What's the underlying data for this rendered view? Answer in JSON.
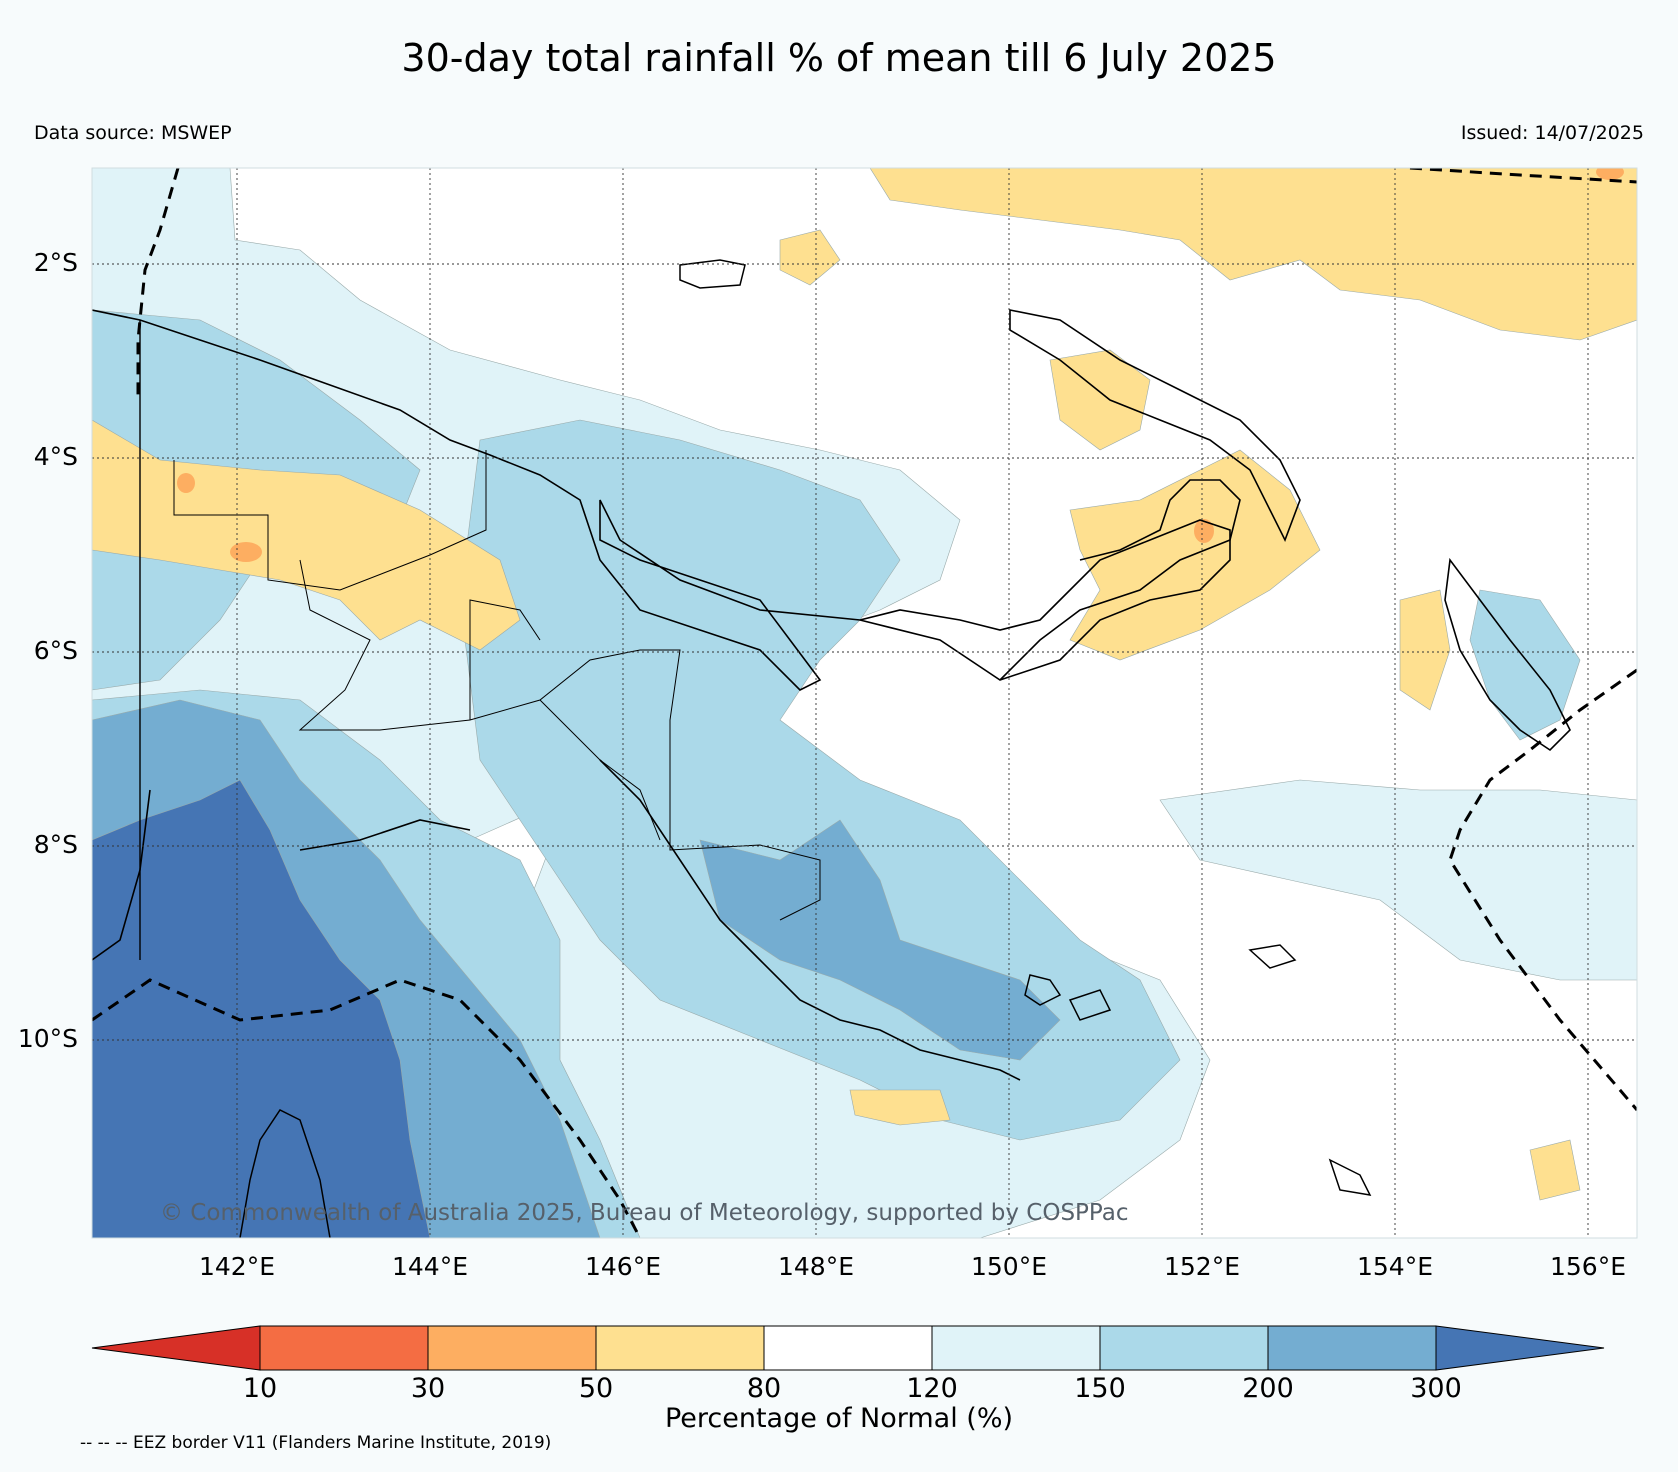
{
  "title": "30-day total rainfall % of mean till 6 July 2025",
  "data_source": "Data source: MSWEP",
  "issued": "Issued: 14/07/2025",
  "lat_labels": [
    "2°S",
    "4°S",
    "6°S",
    "8°S",
    "10°S"
  ],
  "lon_labels": [
    "142°E",
    "144°E",
    "146°E",
    "148°E",
    "150°E",
    "152°E",
    "154°E",
    "156°E"
  ],
  "watermark": "© Commonwealth of Australia 2025, Bureau of Meteorology, supported by COSPPac",
  "colorbar": {
    "ticks": [
      "10",
      "30",
      "50",
      "80",
      "120",
      "150",
      "200",
      "300"
    ],
    "label": "Percentage of Normal (%)",
    "colors": [
      "#d73027",
      "#f46d43",
      "#fdae61",
      "#fee090",
      "#ffffff",
      "#e0f3f8",
      "#abd9e9",
      "#74add1",
      "#4575b4"
    ]
  },
  "eez_note": "-- -- -- EEZ border V11 (Flanders Marine Institute, 2019)",
  "map_extent": {
    "lon": [
      140.4,
      156.5
    ],
    "lat": [
      -12.1,
      -1.0
    ]
  }
}
